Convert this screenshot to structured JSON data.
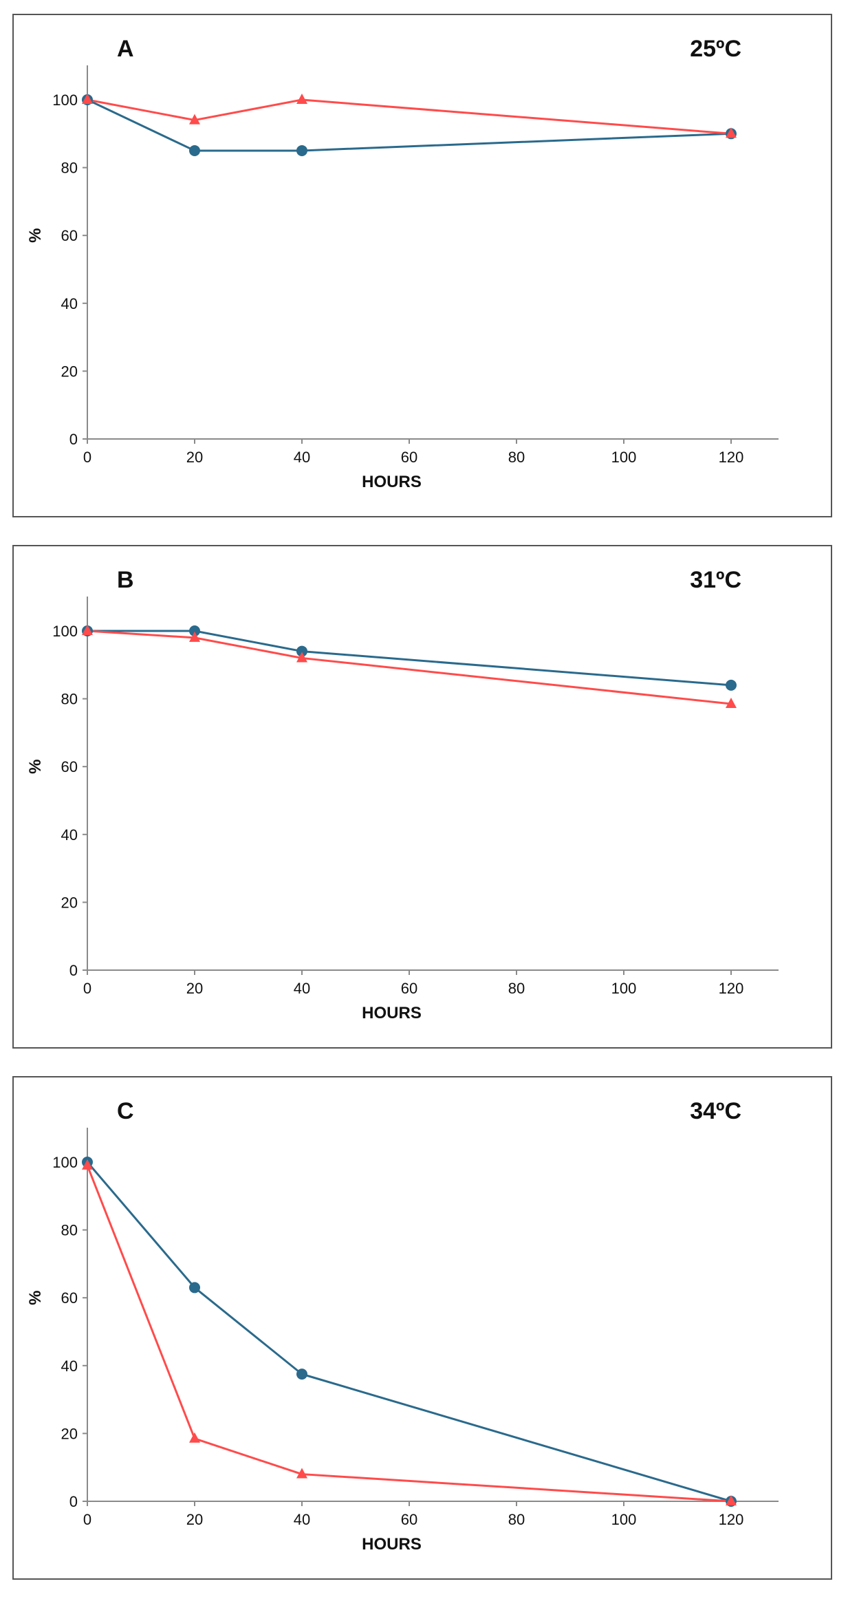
{
  "chart_data": [
    {
      "type": "line",
      "panel_label": "A",
      "title": "25ºC",
      "xlabel": "HOURS",
      "ylabel": "%",
      "xlim": [
        0,
        130
      ],
      "ylim": [
        0,
        110
      ],
      "xticks": [
        0,
        20,
        40,
        60,
        80,
        100,
        120
      ],
      "yticks": [
        0,
        20,
        40,
        60,
        80,
        100
      ],
      "x": [
        0,
        20,
        40,
        120
      ],
      "series": [
        {
          "name": "blue-circles",
          "color": "#2a6a8c",
          "marker": "circle",
          "values": [
            100,
            85,
            85,
            90
          ]
        },
        {
          "name": "red-triangles",
          "color": "#ff4b4b",
          "marker": "triangle",
          "values": [
            100,
            94,
            100,
            90
          ]
        }
      ]
    },
    {
      "type": "line",
      "panel_label": "B",
      "title": "31ºC",
      "xlabel": "HOURS",
      "ylabel": "%",
      "xlim": [
        0,
        130
      ],
      "ylim": [
        0,
        110
      ],
      "xticks": [
        0,
        20,
        40,
        60,
        80,
        100,
        120
      ],
      "yticks": [
        0,
        20,
        40,
        60,
        80,
        100
      ],
      "x": [
        0,
        20,
        40,
        120
      ],
      "series": [
        {
          "name": "blue-circles",
          "color": "#2a6a8c",
          "marker": "circle",
          "values": [
            100,
            100,
            94,
            84
          ]
        },
        {
          "name": "red-triangles",
          "color": "#ff4b4b",
          "marker": "triangle",
          "values": [
            100,
            98,
            92,
            78.5
          ]
        }
      ]
    },
    {
      "type": "line",
      "panel_label": "C",
      "title": "34ºC",
      "xlabel": "HOURS",
      "ylabel": "%",
      "xlim": [
        0,
        130
      ],
      "ylim": [
        0,
        110
      ],
      "xticks": [
        0,
        20,
        40,
        60,
        80,
        100,
        120
      ],
      "yticks": [
        0,
        20,
        40,
        60,
        80,
        100
      ],
      "x": [
        0,
        20,
        40,
        120
      ],
      "series": [
        {
          "name": "blue-circles",
          "color": "#2a6a8c",
          "marker": "circle",
          "values": [
            100,
            63,
            37.5,
            0
          ]
        },
        {
          "name": "red-triangles",
          "color": "#ff4b4b",
          "marker": "triangle",
          "values": [
            99,
            18.5,
            8,
            0
          ]
        }
      ]
    }
  ]
}
